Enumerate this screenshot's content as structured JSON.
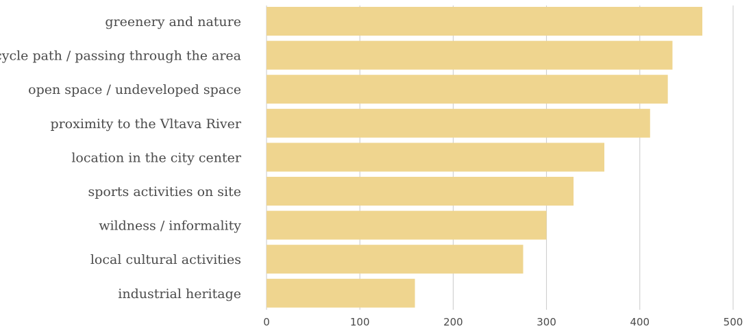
{
  "chart_data": {
    "type": "bar",
    "orientation": "horizontal",
    "categories": [
      "greenery and nature",
      "cycle path / passing through the area",
      "open space / undeveloped space",
      "proximity to the Vltava River",
      "location in the city center",
      "sports activities on site",
      "wildness / informality",
      "local cultural activities",
      "industrial heritage"
    ],
    "values": [
      467,
      435,
      430,
      411,
      362,
      329,
      300,
      275,
      159
    ],
    "xlim": [
      0,
      500
    ],
    "xticks": [
      "0",
      "100",
      "200",
      "300",
      "400",
      "500"
    ],
    "grid": true,
    "bar_color": "#efd58f",
    "grid_color": "#c8c8c8",
    "text_color": "#4a4a4a"
  }
}
